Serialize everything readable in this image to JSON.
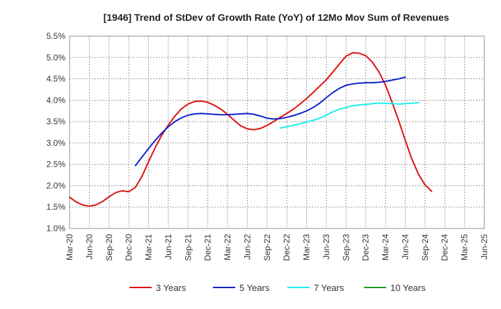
{
  "chart_data": {
    "type": "line",
    "title": "[1946]  Trend of StDev of Growth Rate (YoY) of 12Mo Mov Sum of Revenues",
    "xlabel": "",
    "ylabel": "",
    "ylim": [
      1.0,
      5.5
    ],
    "y_ticks": [
      "1.0%",
      "1.5%",
      "2.0%",
      "2.5%",
      "3.0%",
      "3.5%",
      "4.0%",
      "4.5%",
      "5.0%",
      "5.5%"
    ],
    "y_tick_values": [
      1.0,
      1.5,
      2.0,
      2.5,
      3.0,
      3.5,
      4.0,
      4.5,
      5.0,
      5.5
    ],
    "x_ticks": [
      "Mar-20",
      "Jun-20",
      "Sep-20",
      "Dec-20",
      "Mar-21",
      "Jun-21",
      "Sep-21",
      "Dec-21",
      "Mar-22",
      "Jun-22",
      "Sep-22",
      "Dec-22",
      "Mar-23",
      "Jun-23",
      "Sep-23",
      "Dec-23",
      "Mar-24",
      "Jun-24",
      "Sep-24",
      "Dec-24",
      "Mar-25",
      "Jun-25"
    ],
    "grid": true,
    "legend_position": "bottom",
    "series": [
      {
        "name": "3 Years",
        "color": "#dd1111",
        "start_index": 0,
        "values": [
          1.73,
          1.62,
          1.55,
          1.52,
          1.55,
          1.63,
          1.74,
          1.84,
          1.88,
          1.86,
          1.96,
          2.22,
          2.56,
          2.89,
          3.18,
          3.42,
          3.63,
          3.8,
          3.91,
          3.97,
          3.98,
          3.95,
          3.88,
          3.79,
          3.67,
          3.53,
          3.4,
          3.33,
          3.31,
          3.34,
          3.41,
          3.5,
          3.6,
          3.69,
          3.79,
          3.91,
          4.04,
          4.18,
          4.33,
          4.48,
          4.66,
          4.85,
          5.03,
          5.11,
          5.1,
          5.04,
          4.89,
          4.66,
          4.35,
          3.95,
          3.52,
          3.06,
          2.62,
          2.27,
          2.02,
          1.87
        ]
      },
      {
        "name": "5 Years",
        "color": "#1122cc",
        "start_index": 10,
        "values": [
          2.47,
          2.67,
          2.87,
          3.06,
          3.23,
          3.38,
          3.5,
          3.59,
          3.65,
          3.68,
          3.69,
          3.68,
          3.67,
          3.66,
          3.66,
          3.67,
          3.68,
          3.69,
          3.67,
          3.63,
          3.58,
          3.56,
          3.57,
          3.6,
          3.64,
          3.69,
          3.75,
          3.83,
          3.93,
          4.06,
          4.18,
          4.28,
          4.35,
          4.38,
          4.4,
          4.41,
          4.41,
          4.42,
          4.44,
          4.47,
          4.5,
          4.54
        ]
      },
      {
        "name": "7 Years",
        "color": "#22eeee",
        "start_index": 32,
        "values": [
          3.35,
          3.38,
          3.41,
          3.45,
          3.49,
          3.53,
          3.58,
          3.65,
          3.73,
          3.79,
          3.83,
          3.87,
          3.89,
          3.9,
          3.92,
          3.93,
          3.93,
          3.92,
          3.91,
          3.92,
          3.93,
          3.94
        ]
      },
      {
        "name": "10 Years",
        "color": "#229922",
        "start_index": 0,
        "values": []
      }
    ]
  }
}
